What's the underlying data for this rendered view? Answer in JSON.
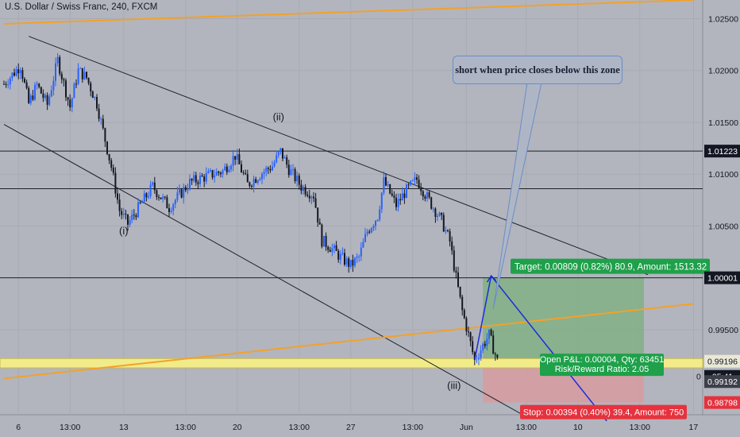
{
  "chart_data": {
    "type": "candlestick",
    "title": "U.S. Dollar / Swiss Franc, 240, FXCM",
    "ylim": [
      0.9868,
      1.0268
    ],
    "y_axis": {
      "ticks": [
        "1.02500",
        "1.02000",
        "1.01500",
        "1.01000",
        "1.00500",
        "0.99500"
      ],
      "tick_values": [
        1.025,
        1.02,
        1.015,
        1.01,
        1.005,
        0.995
      ],
      "labels": [
        {
          "text": "1.01223",
          "value": 1.01223,
          "style": "dark"
        },
        {
          "text": "1.00001",
          "value": 1.00001,
          "style": "dark"
        },
        {
          "text": "0.99196",
          "value": 0.99196,
          "style": "light"
        },
        {
          "text": "05:41",
          "value": 0.9905,
          "style": "dark"
        },
        {
          "text": "0.99192",
          "value": 0.99,
          "style": "darkgray"
        },
        {
          "text": "0.98798",
          "value": 0.98798,
          "style": "red"
        },
        {
          "text": "0",
          "value": 0.9905,
          "style": "plain"
        }
      ]
    },
    "x_axis": {
      "ticks": [
        "6",
        "13:00",
        "13",
        "13:00",
        "20",
        "13:00",
        "27",
        "13:00",
        "Jun",
        "13:00",
        "10",
        "13:00",
        "17"
      ],
      "tick_positions": [
        7,
        32,
        58,
        88,
        113,
        143,
        168,
        198,
        224,
        253,
        278,
        308,
        334
      ]
    },
    "candles": {
      "count": 240,
      "anchors": [
        [
          0,
          1.0187
        ],
        [
          8,
          1.0205
        ],
        [
          12,
          1.0168
        ],
        [
          16,
          1.0186
        ],
        [
          21,
          1.0167
        ],
        [
          26,
          1.021
        ],
        [
          32,
          1.0165
        ],
        [
          36,
          1.02
        ],
        [
          40,
          1.0193
        ],
        [
          45,
          1.0168
        ],
        [
          52,
          1.0107
        ],
        [
          56,
          1.0065
        ],
        [
          60,
          1.0052
        ],
        [
          66,
          1.007
        ],
        [
          72,
          1.0088
        ],
        [
          80,
          1.0068
        ],
        [
          90,
          1.0092
        ],
        [
          98,
          1.0098
        ],
        [
          106,
          1.0103
        ],
        [
          112,
          1.0118
        ],
        [
          118,
          1.009
        ],
        [
          124,
          1.01
        ],
        [
          130,
          1.0108
        ],
        [
          134,
          1.0122
        ],
        [
          138,
          1.0105
        ],
        [
          144,
          1.0088
        ],
        [
          150,
          1.008
        ],
        [
          154,
          1.0036
        ],
        [
          158,
          1.003
        ],
        [
          163,
          1.002
        ],
        [
          168,
          1.0012
        ],
        [
          172,
          1.002
        ],
        [
          176,
          1.0045
        ],
        [
          181,
          1.006
        ],
        [
          184,
          1.0093
        ],
        [
          190,
          1.007
        ],
        [
          194,
          1.0082
        ],
        [
          200,
          1.0095
        ],
        [
          204,
          1.0081
        ],
        [
          208,
          1.0068
        ],
        [
          212,
          1.0055
        ],
        [
          216,
          1.0035
        ],
        [
          219,
          1.0
        ],
        [
          222,
          0.9968
        ],
        [
          225,
          0.9945
        ],
        [
          228,
          0.992
        ],
        [
          232,
          0.9935
        ],
        [
          235,
          0.9945
        ],
        [
          239,
          0.992
        ]
      ]
    },
    "trendlines": [
      {
        "name": "channel-upper",
        "from": [
          12,
          1.0233
        ],
        "to": [
          312,
          1.0003
        ],
        "color": "#1f2029"
      },
      {
        "name": "channel-lower",
        "from": [
          0,
          1.0148
        ],
        "to": [
          254,
          0.9865
        ],
        "color": "#1f2029"
      },
      {
        "name": "orange-upper",
        "from": [
          0,
          1.0245
        ],
        "to": [
          334,
          1.0268
        ],
        "color": "#f3a12a"
      },
      {
        "name": "orange-lower",
        "from": [
          0,
          0.9903
        ],
        "to": [
          334,
          0.9975
        ],
        "color": "#f3a12a"
      }
    ],
    "horizontal_lines": [
      {
        "value": 1.01223,
        "color": "#1f2029"
      },
      {
        "value": 1.0086,
        "color": "#1f2029"
      },
      {
        "value": 1.00001,
        "color": "#1f2029"
      }
    ],
    "zone": {
      "top": 0.99222,
      "bottom": 0.99132,
      "color": "#f2eb8a"
    },
    "position": {
      "start_index": 232,
      "end_index": 310,
      "entry": 0.99192,
      "target": 1.00001,
      "stop": 0.98798,
      "target_label": "Target: 0.00809 (0.82%) 80.9, Amount: 1513.32",
      "pnl_label_1": "Open P&L: 0.00004, Qty: 63451",
      "pnl_label_2": "Risk/Reward Ratio: 2.05",
      "stop_label": "Stop: 0.00394 (0.40%) 39.4, Amount: 750"
    },
    "projection": [
      [
        228,
        0.9921
      ],
      [
        236,
        1.0002
      ],
      [
        292,
        0.9862
      ]
    ],
    "wave_labels": [
      {
        "text": "(i)",
        "x_index": 58,
        "value": 1.0042
      },
      {
        "text": "(ii)",
        "x_index": 133,
        "value": 1.0152
      },
      {
        "text": "(iii)",
        "x_index": 218,
        "value": 0.9893
      }
    ],
    "callout": {
      "text": "short when price closes below this zone",
      "anchor": [
        237,
        0.997
      ]
    }
  }
}
